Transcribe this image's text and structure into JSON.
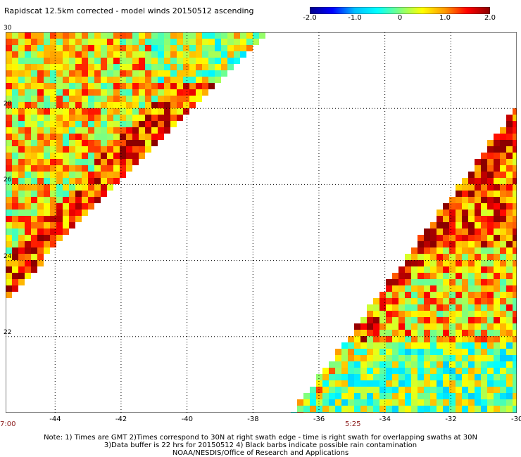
{
  "title": "Rapidscat 12.5km corrected - model winds 20150512 ascending",
  "colorbar": {
    "min": -2.0,
    "max": 2.0,
    "tick_labels": [
      "-2.0",
      "-1.0",
      "0",
      "1.0",
      "2.0"
    ],
    "tick_values": [
      -2.0,
      -1.0,
      0,
      1.0,
      2.0
    ],
    "colors": [
      "#00008b",
      "#0000ff",
      "#00bfff",
      "#00ffff",
      "#7fff7f",
      "#ffff00",
      "#ff9900",
      "#ff0000",
      "#8b0000"
    ]
  },
  "map": {
    "lon_range": [
      -45.5,
      -30
    ],
    "lat_range": [
      20,
      30
    ],
    "lon_ticks": [
      "-44",
      "-42",
      "-40",
      "-38",
      "-36",
      "-34",
      "-32",
      "-30"
    ],
    "lon_tick_values": [
      -44,
      -42,
      -40,
      -38,
      -36,
      -34,
      -32,
      -30
    ],
    "lat_ticks": [
      "22",
      "24",
      "26",
      "28",
      "30"
    ],
    "lat_tick_values": [
      22,
      24,
      26,
      28,
      30
    ]
  },
  "swath_times": [
    {
      "label": "7:00"
    },
    {
      "label": "5:25"
    }
  ],
  "notes": [
    "Note: 1) Times are GMT 2)Times correspond to 30N at right swath edge - time is right swath for overlapping swaths at 30N",
    "3)Data buffer is 22 hrs for 20150512 4) Black barbs indicate possible rain contamination",
    "NOAA/NESDIS/Office of Research and Applications"
  ]
}
